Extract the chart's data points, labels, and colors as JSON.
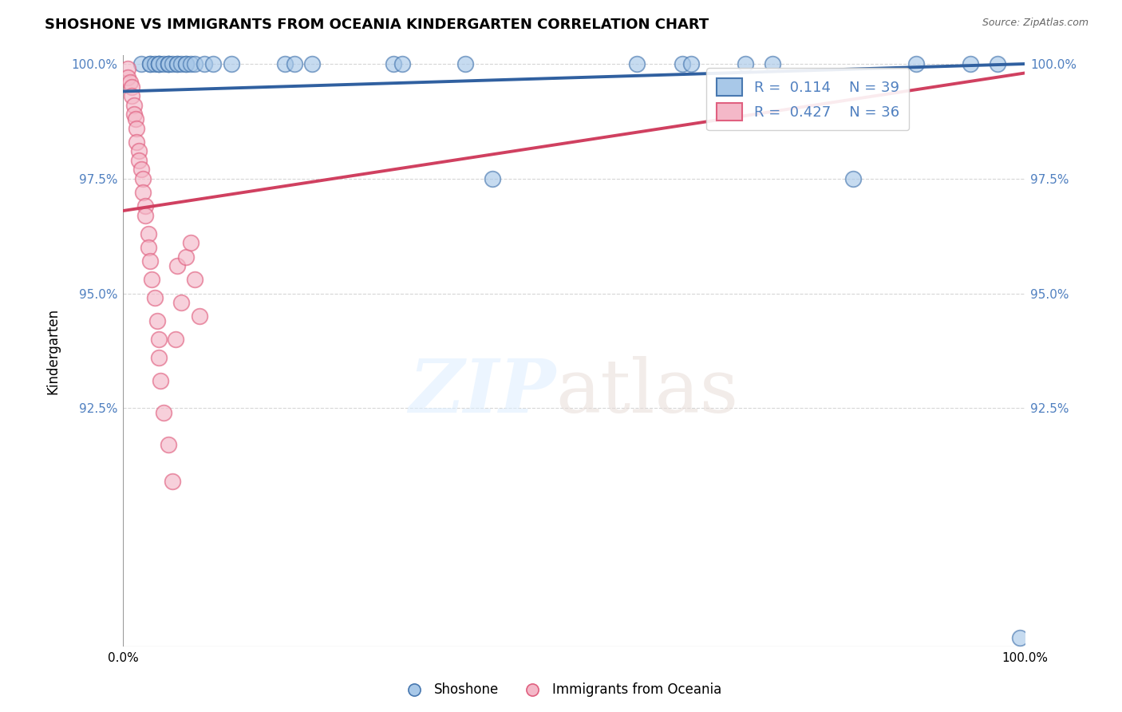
{
  "title": "SHOSHONE VS IMMIGRANTS FROM OCEANIA KINDERGARTEN CORRELATION CHART",
  "source": "Source: ZipAtlas.com",
  "ylabel": "Kindergarten",
  "xlim": [
    0.0,
    1.0
  ],
  "ylim": [
    0.873,
    1.002
  ],
  "ytick_vals": [
    0.925,
    0.95,
    0.975,
    1.0
  ],
  "ytick_labels": [
    "92.5%",
    "95.0%",
    "97.5%",
    "100.0%"
  ],
  "right_ytick_vals": [
    0.925,
    0.95,
    0.975,
    1.0
  ],
  "right_ytick_labels": [
    "92.5%",
    "95.0%",
    "97.5%",
    "100.0%"
  ],
  "xtick_vals": [
    0.0,
    0.1,
    0.2,
    0.3,
    0.4,
    0.5,
    0.6,
    0.7,
    0.8,
    0.9,
    1.0
  ],
  "xtick_labels": [
    "0.0%",
    "",
    "",
    "",
    "",
    "",
    "",
    "",
    "",
    "",
    "100.0%"
  ],
  "legend_r_blue": "0.114",
  "legend_n_blue": "39",
  "legend_r_pink": "0.427",
  "legend_n_pink": "36",
  "blue_color": "#a8c8e8",
  "pink_color": "#f4b8c8",
  "blue_edge_color": "#4878b0",
  "pink_edge_color": "#e06080",
  "blue_line_color": "#3060a0",
  "pink_line_color": "#d04060",
  "grid_color": "#cccccc",
  "tick_color": "#5080c0",
  "shoshone_x": [
    0.02,
    0.03,
    0.03,
    0.035,
    0.04,
    0.04,
    0.04,
    0.045,
    0.05,
    0.05,
    0.05,
    0.055,
    0.06,
    0.06,
    0.065,
    0.07,
    0.07,
    0.075,
    0.08,
    0.09,
    0.1,
    0.12,
    0.18,
    0.19,
    0.21,
    0.3,
    0.31,
    0.38,
    0.41,
    0.57,
    0.62,
    0.63,
    0.69,
    0.72,
    0.81,
    0.88,
    0.94,
    0.97,
    0.995
  ],
  "shoshone_y": [
    1.0,
    1.0,
    1.0,
    1.0,
    1.0,
    1.0,
    1.0,
    1.0,
    1.0,
    1.0,
    1.0,
    1.0,
    1.0,
    1.0,
    1.0,
    1.0,
    1.0,
    1.0,
    1.0,
    1.0,
    1.0,
    1.0,
    1.0,
    1.0,
    1.0,
    1.0,
    1.0,
    1.0,
    0.975,
    1.0,
    1.0,
    1.0,
    1.0,
    1.0,
    0.975,
    1.0,
    1.0,
    1.0,
    0.875
  ],
  "oceania_x": [
    0.005,
    0.005,
    0.008,
    0.01,
    0.01,
    0.012,
    0.012,
    0.014,
    0.015,
    0.015,
    0.018,
    0.018,
    0.02,
    0.022,
    0.022,
    0.025,
    0.025,
    0.028,
    0.028,
    0.03,
    0.032,
    0.035,
    0.038,
    0.04,
    0.04,
    0.042,
    0.045,
    0.05,
    0.055,
    0.058,
    0.06,
    0.065,
    0.07,
    0.075,
    0.08,
    0.085
  ],
  "oceania_y": [
    0.999,
    0.997,
    0.996,
    0.995,
    0.993,
    0.991,
    0.989,
    0.988,
    0.986,
    0.983,
    0.981,
    0.979,
    0.977,
    0.975,
    0.972,
    0.969,
    0.967,
    0.963,
    0.96,
    0.957,
    0.953,
    0.949,
    0.944,
    0.94,
    0.936,
    0.931,
    0.924,
    0.917,
    0.909,
    0.94,
    0.956,
    0.948,
    0.958,
    0.961,
    0.953,
    0.945
  ],
  "blue_trend_x": [
    0.0,
    1.0
  ],
  "blue_trend_y": [
    0.994,
    1.0
  ],
  "pink_trend_x": [
    0.0,
    1.0
  ],
  "pink_trend_y": [
    0.968,
    0.998
  ]
}
